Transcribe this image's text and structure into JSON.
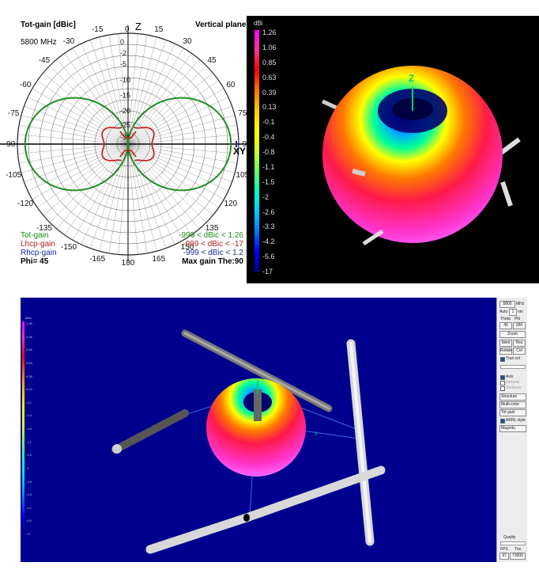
{
  "polar": {
    "title": "Tot-gain [dBic]",
    "frequency": "5800 MHz",
    "plane": "Vertical plane",
    "axis_z": "Z",
    "axis_xy": "XY",
    "angle_labels": [
      "0",
      "15",
      "30",
      "45",
      "60",
      "75",
      "90",
      "105",
      "120",
      "135",
      "150",
      "165",
      "180",
      "-165",
      "-150",
      "-135",
      "-120",
      "-105",
      "-90",
      "-75",
      "-60",
      "-45",
      "-30",
      "-15"
    ],
    "radial_labels": [
      "0",
      "-2",
      "-5",
      "-10",
      "-15",
      "-20",
      "-25",
      "-30"
    ],
    "legend": [
      {
        "name": "Tot-gain",
        "range": "-999 < dBic < 1.26",
        "color": "#1a8a1a"
      },
      {
        "name": "Lhcp-gain",
        "range": "-999 < dBic < -17",
        "color": "#b02020"
      },
      {
        "name": "Rhcp-gain",
        "range": "-999 < dBic < 1.2",
        "color": "#1a2a9a"
      }
    ],
    "phi": "Phi= 45",
    "max_gain": "Max gain The:90"
  },
  "scale_top": {
    "unit": "dBi",
    "ticks": [
      "1.26",
      "1.06",
      "0.85",
      "0.63",
      "0.39",
      "0.13",
      "-0.1",
      "-0.4",
      "-0.8",
      "-1.1",
      "-1.5",
      "-2",
      "-2.6",
      "-3.3",
      "-4.2",
      "-5.6",
      "-17"
    ]
  },
  "view3d_top": {
    "axis_z": "Z"
  },
  "scale_bottom": {
    "unit": "dBic",
    "ticks": [
      "1.26",
      "1.06",
      "0.85",
      "0.63",
      "0.39",
      "0.13",
      "-0.1",
      "-0.4",
      "-0.8",
      "-1.1",
      "-1.5",
      "-2",
      "-2.6",
      "-3.3",
      "-4.2",
      "-5.6",
      "-17"
    ]
  },
  "view3d_bottom": {
    "axis_z": "Z",
    "axis_x": "X"
  },
  "controls": {
    "freq_value": "5800",
    "freq_unit": "MHz",
    "auto_label": "Auto",
    "step_value": "1",
    "step_unit": "nm",
    "theta_label": "Theta",
    "phi_label": "Phi",
    "theta_value": "45",
    "phi_value": "250",
    "zoom_label": "Zoom",
    "ident_label": "Ident",
    "res_label": "Res",
    "rotate_label": "Rotate",
    "col_label": "Col",
    "true_col_label": "True col",
    "axis_label": "Axis",
    "ground_label": "Ground",
    "surfaces_label": "Surfaces",
    "structure_option": "Structure",
    "multicolor_option": "Multi-color",
    "totgain_option": "Tot gain",
    "arrl_label": "ARRL style",
    "magnitude_option": "Magnitu",
    "quality_label": "Quality",
    "fps_label": "FPS",
    "tris_label": "Tris",
    "fps_value": "97",
    "tris_value": "73000"
  }
}
